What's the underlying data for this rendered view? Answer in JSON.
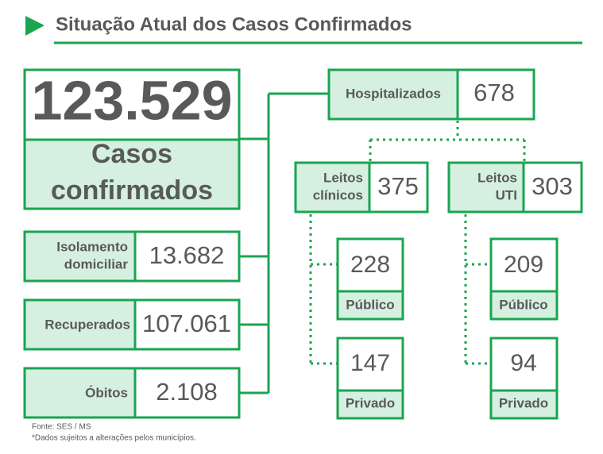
{
  "header": {
    "title": "Situação Atual dos Casos Confirmados"
  },
  "total": {
    "value": "123.529",
    "label": [
      "Casos",
      "confirmados"
    ]
  },
  "status": [
    {
      "label": [
        "Isolamento",
        "domiciliar"
      ],
      "value": "13.682"
    },
    {
      "label": [
        "Recuperados"
      ],
      "value": "107.061"
    },
    {
      "label": [
        "Óbitos"
      ],
      "value": "2.108"
    }
  ],
  "hospitalized": {
    "label": "Hospitalizados",
    "value": "678",
    "wards": [
      {
        "label": [
          "Leitos",
          "clínicos"
        ],
        "value": "375",
        "split": [
          {
            "value": "228",
            "label": "Público"
          },
          {
            "value": "147",
            "label": "Privado"
          }
        ]
      },
      {
        "label": [
          "Leitos",
          "UTI"
        ],
        "value": "303",
        "split": [
          {
            "value": "209",
            "label": "Público"
          },
          {
            "value": "94",
            "label": "Privado"
          }
        ]
      }
    ]
  },
  "footer": {
    "source": "Fonte: SES / MS",
    "note": "*Dados sujeitos a alterações pelos municípios."
  }
}
